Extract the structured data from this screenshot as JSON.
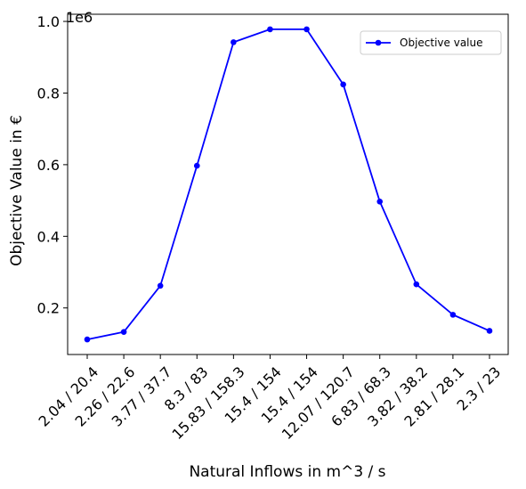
{
  "chart_data": {
    "type": "line",
    "title": "",
    "xlabel": "Natural Inflows in m^3 / s",
    "ylabel": "Objective Value in €",
    "y_offset_label": "1e6",
    "categories": [
      "2.04 / 20.4",
      "2.26 / 22.6",
      "3.77 / 37.7",
      "8.3 / 83",
      "15.83 / 158.3",
      "15.4 / 154",
      "15.4 / 154",
      "12.07 / 120.7",
      "6.83 / 68.3",
      "3.82 / 38.2",
      "2.81 / 28.1",
      "2.3 / 23"
    ],
    "series": [
      {
        "name": "Objective value",
        "color": "#0000ff",
        "values": [
          0.112,
          0.133,
          0.262,
          0.597,
          0.942,
          0.978,
          0.978,
          0.824,
          0.497,
          0.266,
          0.181,
          0.136
        ]
      }
    ],
    "yticks": [
      {
        "value": 0.2,
        "label": "0.2"
      },
      {
        "value": 0.4,
        "label": "0.4"
      },
      {
        "value": 0.6,
        "label": "0.6"
      },
      {
        "value": 0.8,
        "label": "0.8"
      },
      {
        "value": 1.0,
        "label": "1.0"
      }
    ],
    "ylim": [
      0.07,
      1.02
    ],
    "grid": false,
    "legend": "top-right"
  }
}
